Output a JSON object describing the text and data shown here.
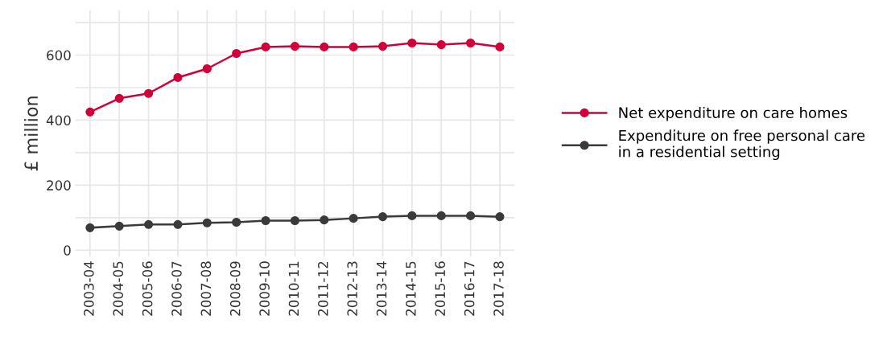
{
  "chart_data": {
    "type": "line",
    "ylabel": "£ million",
    "categories": [
      "2003-04",
      "2004-05",
      "2005-06",
      "2006-07",
      "2007-08",
      "2008-09",
      "2009-10",
      "2010-11",
      "2011-12",
      "2012-13",
      "2013-14",
      "2014-15",
      "2015-16",
      "2016-17",
      "2017-18"
    ],
    "series": [
      {
        "name": "Net expenditure on care homes",
        "color": "#d1003a",
        "values": [
          425,
          467,
          482,
          531,
          558,
          605,
          625,
          627,
          625,
          625,
          627,
          637,
          632,
          637,
          625
        ]
      },
      {
        "name": "Expenditure on free personal care\nin a residential setting",
        "color": "#3a3a3a",
        "values": [
          69,
          74,
          79,
          79,
          84,
          86,
          91,
          91,
          93,
          98,
          103,
          106,
          106,
          106,
          103
        ]
      }
    ],
    "ylim": [
      -20,
      738
    ],
    "yticks": [
      0,
      {
        "value": 100,
        "label": null
      },
      200,
      {
        "value": 300,
        "label": null
      },
      400,
      {
        "value": 500,
        "label": null
      },
      600,
      {
        "value": 700,
        "label": null
      }
    ],
    "grid": true,
    "legend": "right",
    "marker": "circle",
    "line_style": "solid"
  }
}
